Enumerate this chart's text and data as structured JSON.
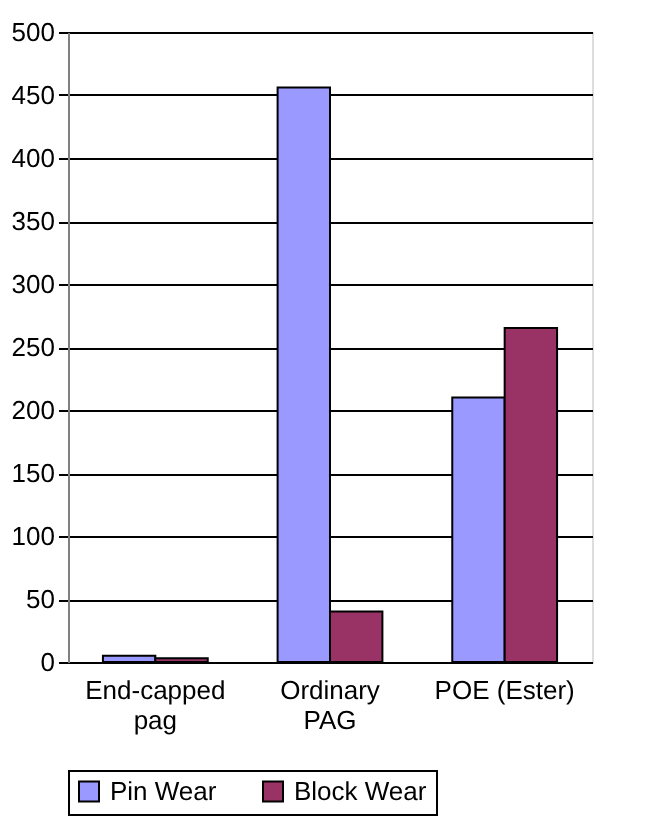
{
  "chart_data": {
    "type": "bar",
    "categories": [
      "End-capped pag",
      "Ordinary PAG",
      "POE (Ester)"
    ],
    "series": [
      {
        "name": "Pin Wear",
        "color": "#9999ff",
        "values": [
          5,
          456,
          210
        ]
      },
      {
        "name": "Block Wear",
        "color": "#993366",
        "values": [
          3,
          40,
          265
        ]
      }
    ],
    "ylim": [
      0,
      500
    ],
    "yticks": [
      0,
      50,
      100,
      150,
      200,
      250,
      300,
      350,
      400,
      450,
      500
    ],
    "grid": "y",
    "legend": "bottom"
  }
}
